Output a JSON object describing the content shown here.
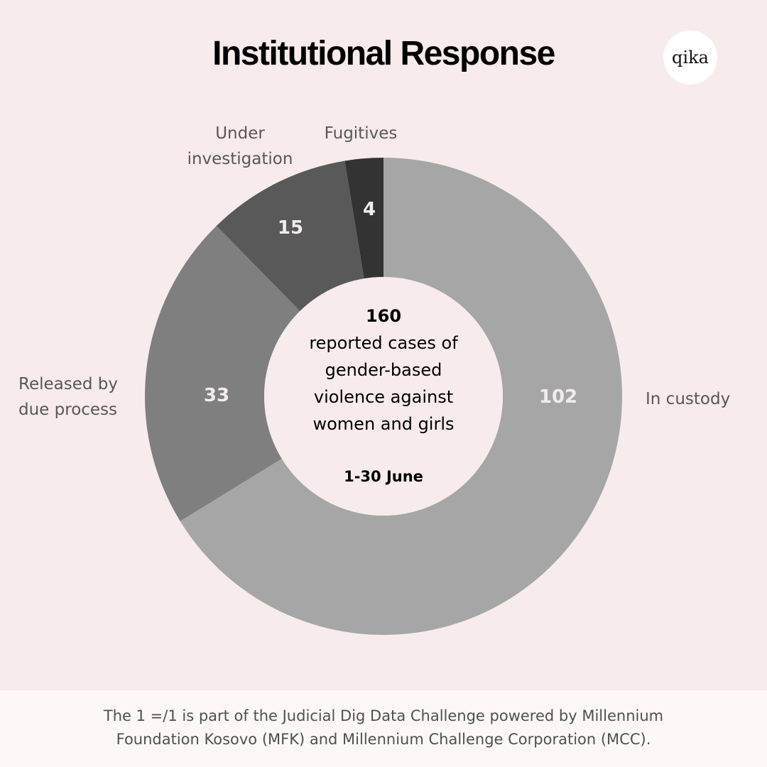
{
  "title": "Institutional Response",
  "logo_text": "qika",
  "chart_data": {
    "type": "pie",
    "donut": true,
    "categories": [
      "In custody",
      "Released by due process",
      "Under investigation",
      "Fugitives"
    ],
    "values": [
      102,
      33,
      15,
      4
    ],
    "colors": [
      "#a6a6a6",
      "#7f7f7f",
      "#595959",
      "#333333"
    ],
    "category_label_lines": [
      [
        "In custody"
      ],
      [
        "Released by",
        "due process"
      ],
      [
        "Under",
        "investigation"
      ],
      [
        "Fugitives"
      ]
    ],
    "center": {
      "total": "160",
      "description_lines": [
        "reported cases of",
        "gender-based",
        "violence against",
        "women and girls"
      ],
      "period": "1-30 June"
    }
  },
  "footer": {
    "line1": "The 1 =/1 is part of the Judicial Dig Data Challenge powered by Millennium",
    "line2": "Foundation Kosovo (MFK) and Millennium Challenge Corporation (MCC)."
  }
}
